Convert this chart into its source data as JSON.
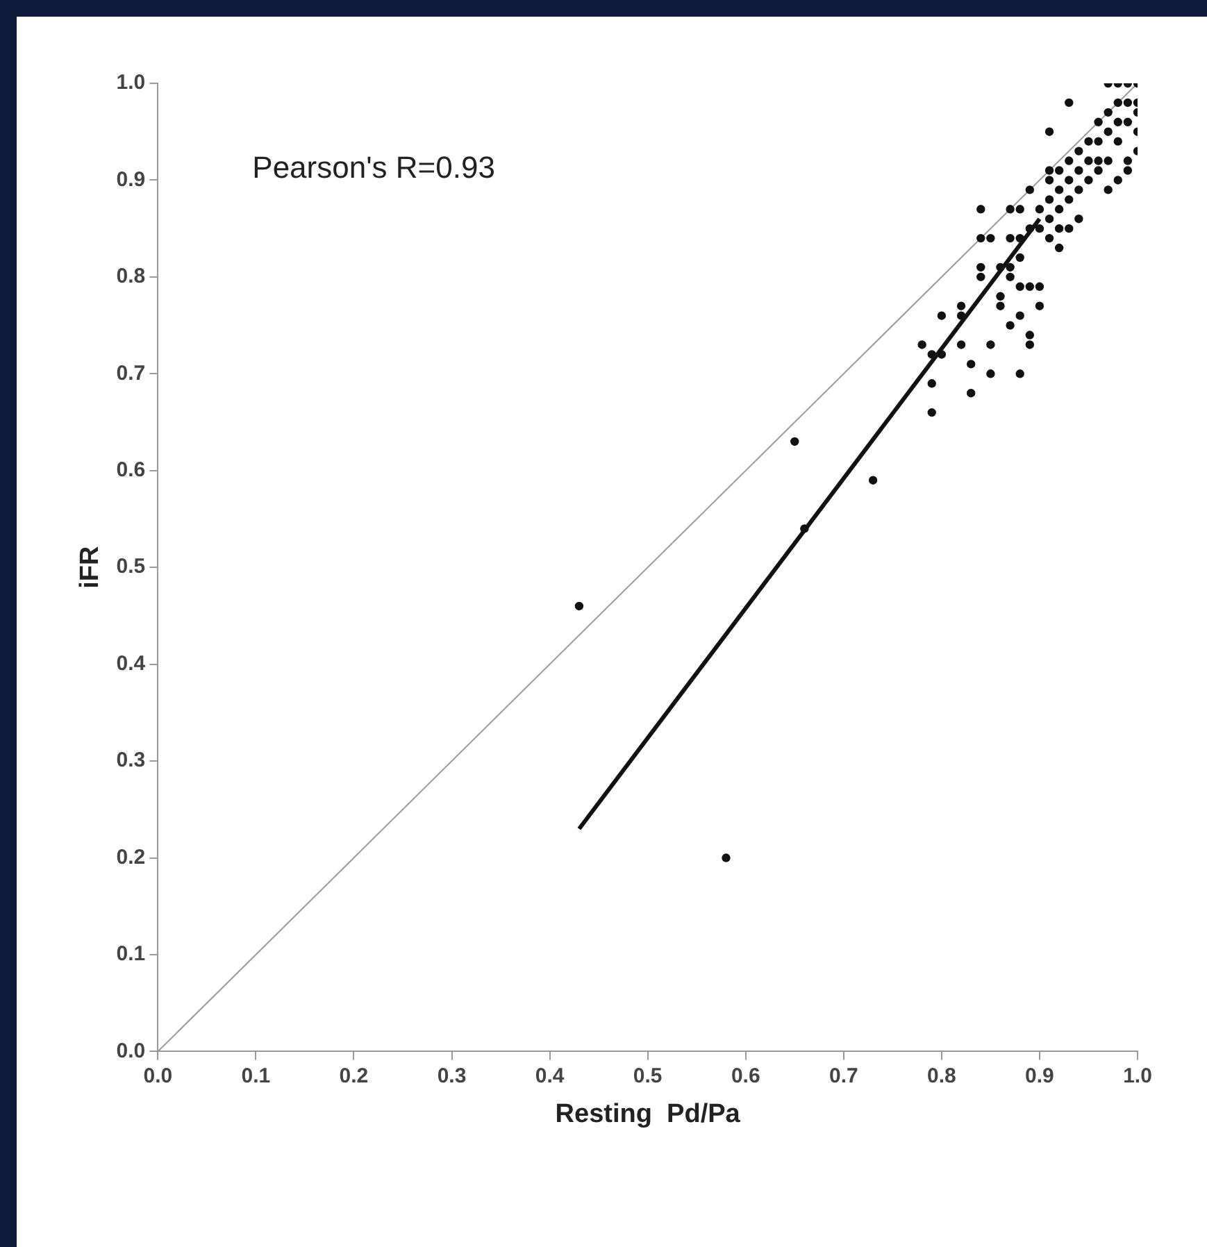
{
  "chart_data": {
    "type": "scatter",
    "xlabel": "Resting  Pd/Pa",
    "ylabel": "iFR",
    "annotations": [
      "Pearson's R=0.93"
    ],
    "xlim": [
      0,
      1
    ],
    "xticks": [
      {
        "value": 0,
        "label": "0.0"
      },
      0.1,
      0.2,
      0.3,
      0.4,
      0.5,
      0.6,
      0.7,
      0.8,
      0.9,
      {
        "value": 1,
        "label": "1.0"
      }
    ],
    "ylim": [
      0,
      1
    ],
    "yticks": [
      {
        "value": 0,
        "label": "0.0"
      },
      0.1,
      0.2,
      0.3,
      0.4,
      0.5,
      0.6,
      0.7,
      0.8,
      0.9,
      {
        "value": 1,
        "label": "1.0"
      }
    ],
    "grid": false,
    "legend": false,
    "series": [
      {
        "type": "line",
        "color": "#9a9a9a",
        "marker": "none",
        "line_style": "solid",
        "x": [
          0,
          1
        ],
        "values": [
          0,
          1
        ]
      },
      {
        "type": "line",
        "color": "#111111",
        "marker": "none",
        "line_style": "solid",
        "x": [
          0.43,
          0.9
        ],
        "values": [
          0.23,
          0.86
        ]
      },
      {
        "type": "scatter",
        "color": "#111111",
        "marker": "circle",
        "x": [
          0.43,
          0.58,
          0.65,
          0.66,
          0.73,
          0.78,
          0.79,
          0.79,
          0.79,
          0.8,
          0.8,
          0.82,
          0.82,
          0.82,
          0.83,
          0.83,
          0.84,
          0.84,
          0.84,
          0.84,
          0.85,
          0.85,
          0.85,
          0.86,
          0.86,
          0.86,
          0.87,
          0.87,
          0.87,
          0.87,
          0.87,
          0.88,
          0.88,
          0.88,
          0.88,
          0.88,
          0.88,
          0.89,
          0.89,
          0.89,
          0.89,
          0.89,
          0.9,
          0.9,
          0.9,
          0.9,
          0.91,
          0.91,
          0.91,
          0.91,
          0.91,
          0.91,
          0.92,
          0.92,
          0.92,
          0.92,
          0.92,
          0.93,
          0.93,
          0.93,
          0.93,
          0.93,
          0.94,
          0.94,
          0.94,
          0.94,
          0.95,
          0.95,
          0.95,
          0.96,
          0.96,
          0.96,
          0.96,
          0.97,
          0.97,
          0.97,
          0.97,
          0.97,
          0.98,
          0.98,
          0.98,
          0.98,
          0.98,
          0.99,
          0.99,
          0.99,
          0.99,
          0.99,
          1.0,
          1.0,
          1.0,
          1.0,
          1.0
        ],
        "values": [
          0.46,
          0.2,
          0.63,
          0.54,
          0.59,
          0.73,
          0.72,
          0.69,
          0.66,
          0.72,
          0.76,
          0.77,
          0.73,
          0.76,
          0.71,
          0.68,
          0.87,
          0.84,
          0.81,
          0.8,
          0.84,
          0.73,
          0.7,
          0.81,
          0.78,
          0.77,
          0.87,
          0.84,
          0.81,
          0.8,
          0.75,
          0.87,
          0.84,
          0.82,
          0.79,
          0.76,
          0.7,
          0.89,
          0.85,
          0.79,
          0.74,
          0.73,
          0.87,
          0.85,
          0.79,
          0.77,
          0.95,
          0.91,
          0.9,
          0.88,
          0.86,
          0.84,
          0.91,
          0.89,
          0.87,
          0.85,
          0.83,
          0.98,
          0.92,
          0.9,
          0.88,
          0.85,
          0.93,
          0.91,
          0.89,
          0.86,
          0.94,
          0.92,
          0.9,
          0.96,
          0.94,
          0.92,
          0.91,
          1.0,
          0.97,
          0.95,
          0.92,
          0.89,
          1.0,
          0.98,
          0.96,
          0.94,
          0.9,
          1.0,
          0.98,
          0.96,
          0.92,
          0.91,
          1.0,
          0.98,
          0.97,
          0.95,
          0.93
        ]
      }
    ]
  }
}
